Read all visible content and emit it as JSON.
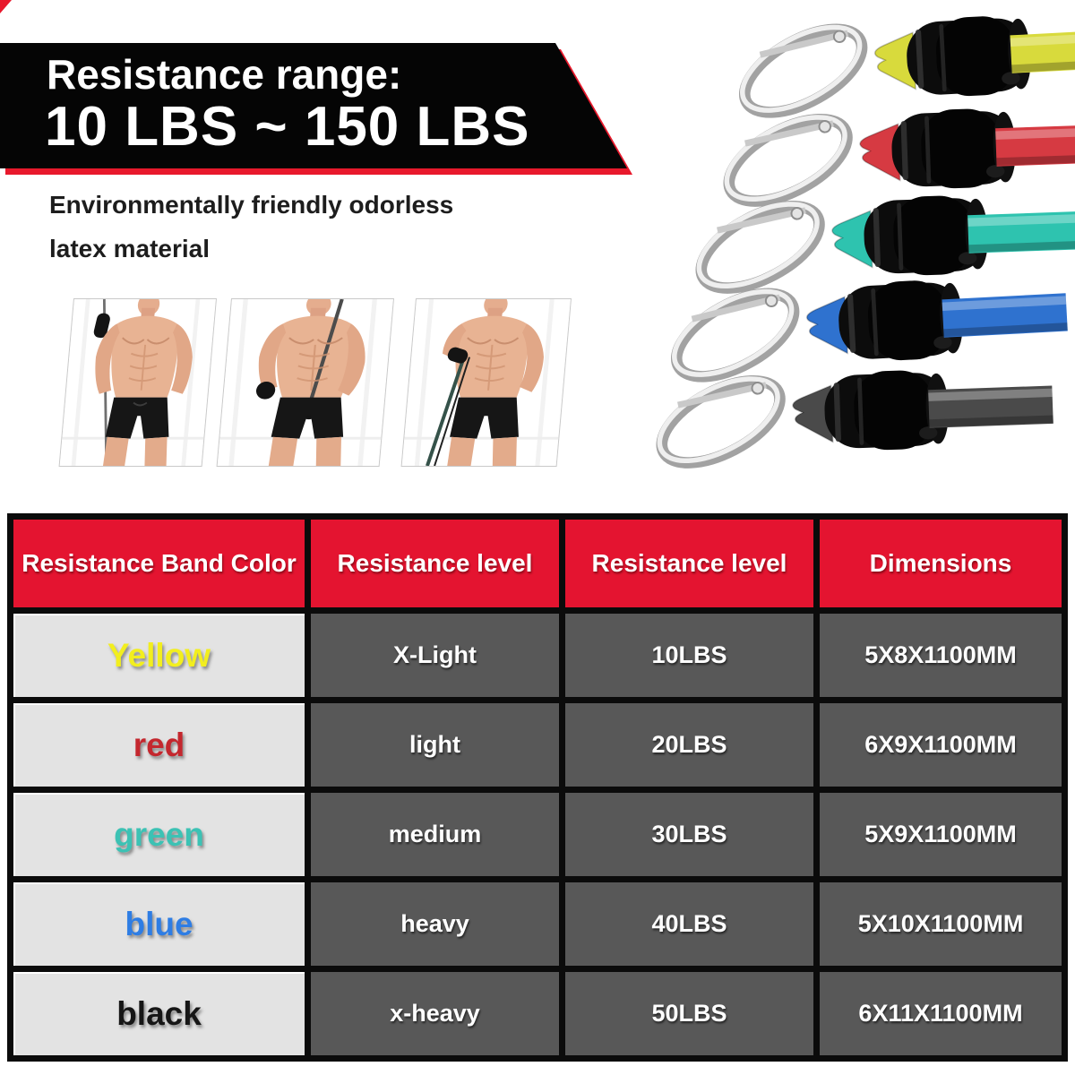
{
  "banner": {
    "title": "Resistance range:",
    "range": "10 LBS ~ 150 LBS",
    "accent_color": "#e8192c",
    "background_color": "#050505"
  },
  "description": {
    "line1": "Environmentally friendly odorless",
    "line2": "latex material"
  },
  "photos": {
    "labels": [
      "standing-band-curl-photo",
      "band-pull-behind-back-photo",
      "low-band-row-photo"
    ]
  },
  "bands": [
    {
      "name": "yellow",
      "color": "#d8da3c"
    },
    {
      "name": "red",
      "color": "#d63a42"
    },
    {
      "name": "green",
      "color": "#2ec3af"
    },
    {
      "name": "blue",
      "color": "#2f72cf"
    },
    {
      "name": "black",
      "color": "#4a4a4a"
    }
  ],
  "table": {
    "header_bg": "#e41430",
    "headers": [
      "Resistance Band Color",
      "Resistance level",
      "Resistance level",
      "Dimensions"
    ],
    "rows": [
      {
        "color": "Yellow",
        "text_color": "#f2ee1e",
        "level": "X-Light",
        "weight": "10LBS",
        "dimensions": "5X8X1100MM"
      },
      {
        "color": "red",
        "text_color": "#c4272e",
        "level": "light",
        "weight": "20LBS",
        "dimensions": "6X9X1100MM"
      },
      {
        "color": "green",
        "text_color": "#3cc2b4",
        "level": "medium",
        "weight": "30LBS",
        "dimensions": "5X9X1100MM"
      },
      {
        "color": "blue",
        "text_color": "#2e7de4",
        "level": "heavy",
        "weight": "40LBS",
        "dimensions": "5X10X1100MM"
      },
      {
        "color": "black",
        "text_color": "#161616",
        "level": "x-heavy",
        "weight": "50LBS",
        "dimensions": "6X11X1100MM"
      }
    ]
  }
}
